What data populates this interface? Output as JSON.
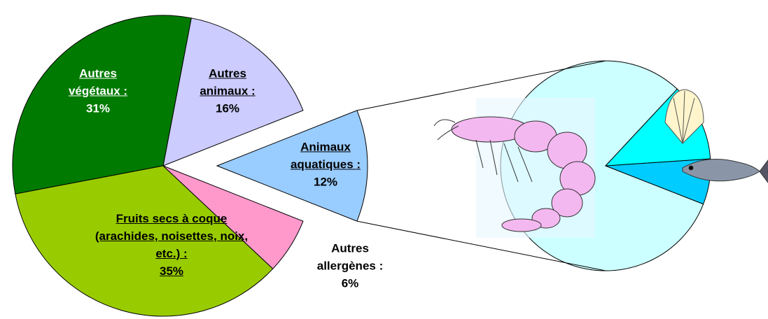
{
  "chart_data": [
    {
      "type": "pie",
      "categories": [
        "Animaux aquatiques :",
        "Autres animaux :",
        "Autres végétaux :",
        "Fruits secs à coque (arachides, noisettes, noix, etc.) :",
        "Autres allergènes :"
      ],
      "values": [
        12,
        16,
        31,
        35,
        6
      ],
      "value_labels": [
        "12%",
        "16%",
        "31%",
        "35%",
        "6%"
      ],
      "colors": [
        "#99ccff",
        "#ccccff",
        "#007a00",
        "#99cc00",
        "#ff99cc"
      ]
    },
    {
      "type": "pie",
      "categories": [
        null,
        null,
        null
      ],
      "values": [
        81,
        7,
        12
      ],
      "colors": [
        "#ccffff",
        "#00ccff",
        "#00ffff"
      ]
    }
  ]
}
